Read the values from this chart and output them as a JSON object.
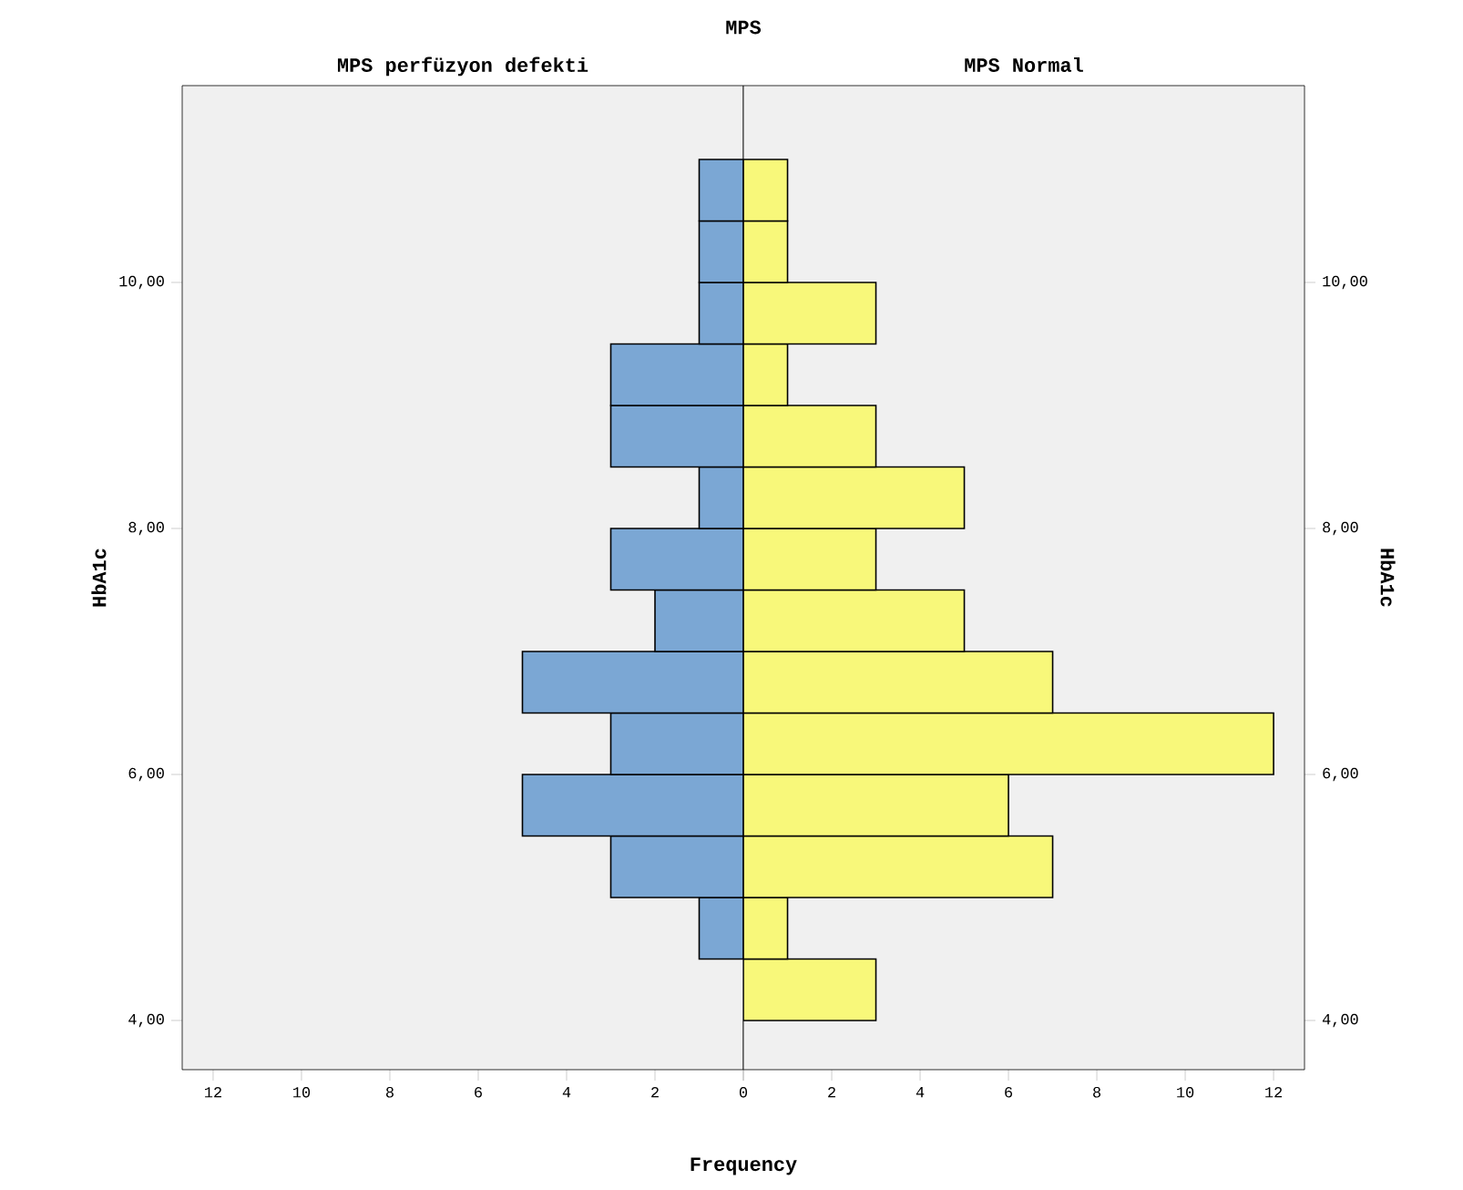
{
  "chart_data": [
    {
      "type": "histogram",
      "orientation": "horizontal",
      "title": "MPS perfüzyon defekti",
      "xlabel": "Frequency",
      "ylabel": "HbA1c",
      "annotations": [
        "MPS"
      ],
      "bins": [
        4.0,
        4.5,
        5.0,
        5.5,
        6.0,
        6.5,
        7.0,
        7.5,
        8.0,
        8.5,
        9.0,
        9.5,
        10.0,
        10.5,
        11.0
      ],
      "values": [
        0,
        1,
        3,
        5,
        3,
        5,
        2,
        3,
        1,
        3,
        3,
        1,
        1,
        1
      ],
      "color": "#7ba7d4",
      "xlim": [
        12.7,
        0
      ],
      "ylim": [
        3.6,
        11.6
      ],
      "xticks": [
        0,
        2,
        4,
        6,
        8,
        10,
        12
      ],
      "yticks": [
        {
          "value": 4,
          "label": "4,00"
        },
        {
          "value": 6,
          "label": "6,00"
        },
        {
          "value": 8,
          "label": "8,00"
        },
        {
          "value": 10,
          "label": "10,00"
        }
      ]
    },
    {
      "type": "histogram",
      "orientation": "horizontal",
      "title": "MPS Normal",
      "ylabel": "HbA1c",
      "bins": [
        4.0,
        4.5,
        5.0,
        5.5,
        6.0,
        6.5,
        7.0,
        7.5,
        8.0,
        8.5,
        9.0,
        9.5,
        10.0,
        10.5,
        11.0
      ],
      "values": [
        3,
        1,
        7,
        6,
        12,
        7,
        5,
        3,
        5,
        3,
        1,
        3,
        1,
        1
      ],
      "color": "#f8f87a",
      "xlim": [
        0,
        12.7
      ],
      "ylim": [
        3.6,
        11.6
      ],
      "xticks": [
        {
          "value": 0,
          "label": null
        },
        2,
        4,
        6,
        8,
        10,
        12
      ],
      "yticks": [
        {
          "value": 4,
          "label": "4,00"
        },
        {
          "value": 6,
          "label": "6,00"
        },
        {
          "value": 8,
          "label": "8,00"
        },
        {
          "value": 10,
          "label": "10,00"
        }
      ]
    }
  ]
}
